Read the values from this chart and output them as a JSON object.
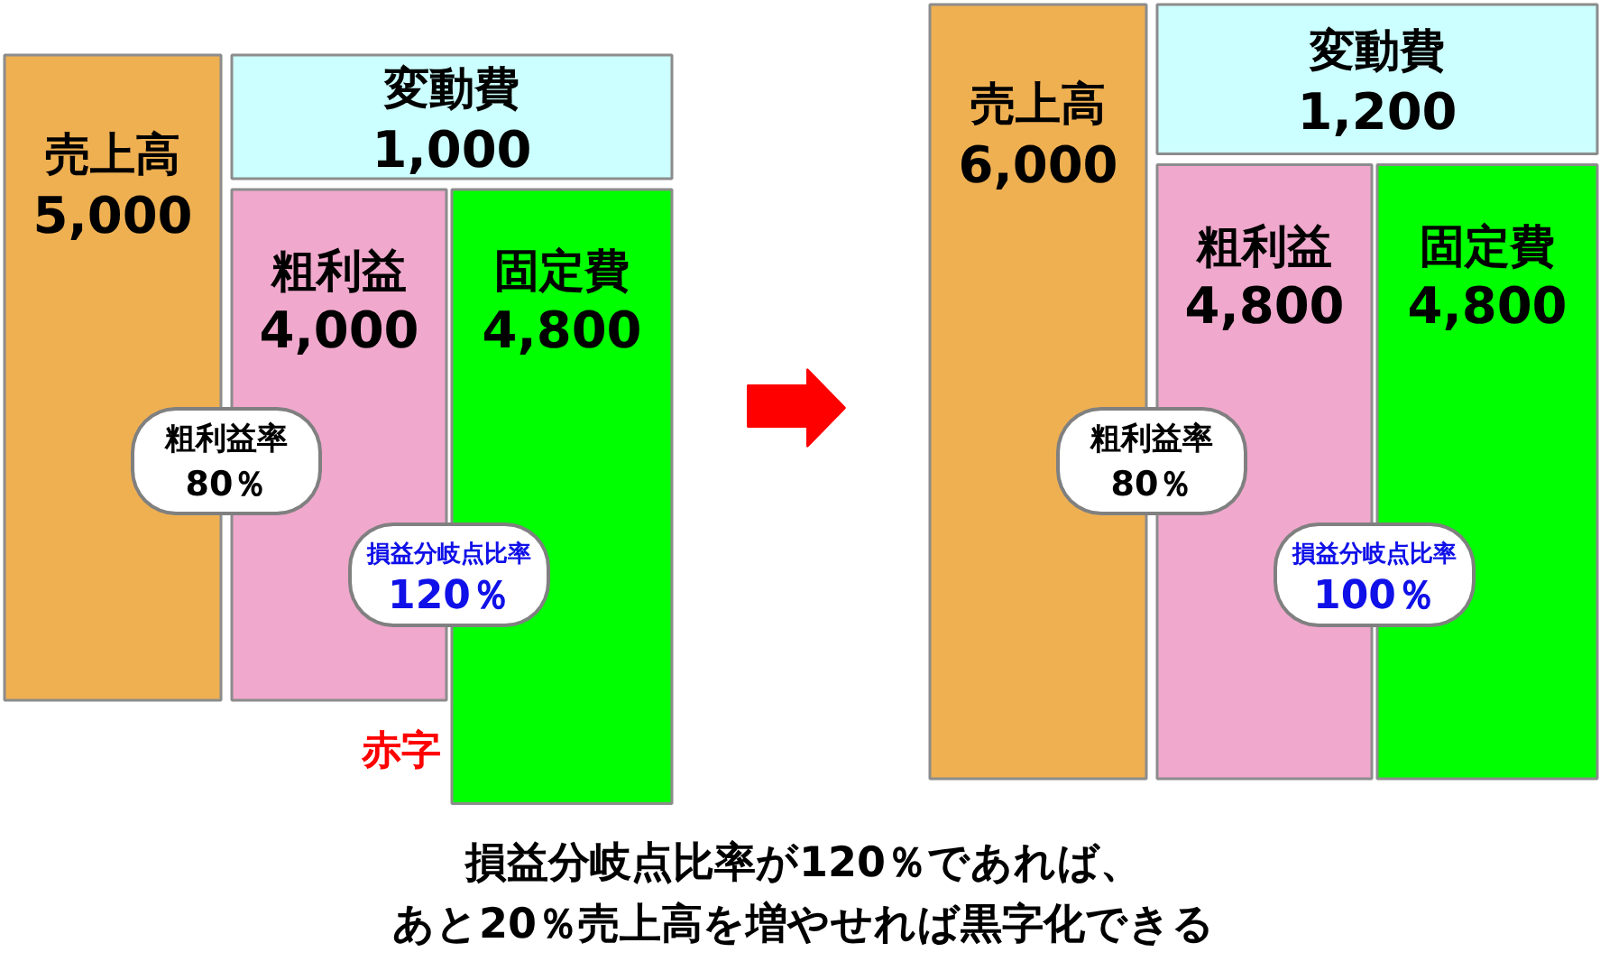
{
  "chart_data": {
    "type": "other",
    "categories": [
      "売上高",
      "変動費",
      "粗利益",
      "固定費"
    ],
    "series": [
      {
        "values": [
          5000,
          1000,
          4000,
          4800
        ],
        "value_labels": [
          "5,000",
          "1,000",
          "4,000",
          "4,800"
        ],
        "colors": [
          "#efb052",
          "#ccffff",
          "#f0a8cc",
          "#00ff00"
        ]
      },
      {
        "values": [
          6000,
          1200,
          4800,
          4800
        ],
        "value_labels": [
          "6,000",
          "1,200",
          "4,800",
          "4,800"
        ],
        "colors": [
          "#efb052",
          "#ccffff",
          "#f0a8cc",
          "#00ff00"
        ]
      }
    ],
    "annotations": [
      "粗利益率\n80％",
      "損益分岐点比率\n120％",
      "赤字",
      "粗利益率\n80％",
      "損益分岐点比率\n100％",
      "損益分岐点比率が120％であれば、",
      "あと20％売上高を増やせれば黒字化できる"
    ]
  }
}
